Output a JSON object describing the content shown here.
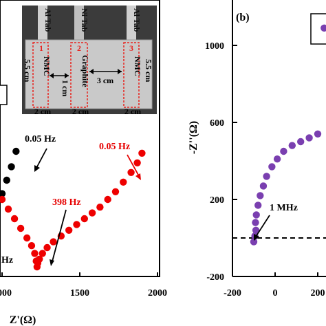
{
  "colors": {
    "black_series": "#000000",
    "red_series": "#ee0000",
    "purple_series": "#7a3fb0",
    "photo_bg": "#3b3b3b",
    "pouch": "#c9c9c9",
    "pouch_label_red": "#e8231e"
  },
  "chart_data": [
    {
      "type": "scatter",
      "panel": "a",
      "xlabel": "Z'(Ω)",
      "ylabel": "",
      "xlim": [
        1000,
        2000
      ],
      "x_ticks": [
        "1000",
        "1500",
        "2000"
      ],
      "series": [
        {
          "color": "#000000",
          "x": [
            1000,
            1030,
            1060,
            1090
          ],
          "y": [
            0.12,
            0.19,
            0.26,
            0.34
          ]
        },
        {
          "color": "#ee0000",
          "x": [
            1000,
            1040,
            1080,
            1120,
            1160,
            1190,
            1210,
            1220,
            1225,
            1230,
            1240,
            1260,
            1290,
            1330,
            1380,
            1430,
            1480,
            1530,
            1580,
            1630,
            1680,
            1730,
            1780,
            1830,
            1870,
            1900
          ],
          "y": [
            0.09,
            0.04,
            -0.01,
            -0.06,
            -0.11,
            -0.15,
            -0.19,
            -0.23,
            -0.26,
            -0.24,
            -0.22,
            -0.19,
            -0.16,
            -0.13,
            -0.1,
            -0.07,
            -0.04,
            -0.01,
            0.02,
            0.05,
            0.09,
            0.13,
            0.18,
            0.23,
            0.28,
            0.33
          ]
        }
      ],
      "annotations": [
        "0.05 Hz",
        "0.05 Hz",
        "398 Hz",
        "Hz"
      ]
    },
    {
      "type": "scatter",
      "panel": "b",
      "title": "(b)",
      "xlabel": "",
      "ylabel": "-Z''(Ω)",
      "xlim": [
        -200,
        300
      ],
      "ylim": [
        -200,
        1200
      ],
      "x_ticks": [
        "-200",
        "0",
        "200"
      ],
      "y_ticks": [
        "-200",
        "200",
        "600",
        "1000"
      ],
      "series": [
        {
          "color": "#7a3fb0",
          "x": [
            -100,
            -95,
            -90,
            -92,
            -88,
            -80,
            -70,
            -55,
            -40,
            -15,
            10,
            40,
            80,
            120,
            160,
            200,
            230
          ],
          "y": [
            -20,
            10,
            40,
            80,
            120,
            170,
            220,
            270,
            320,
            370,
            410,
            450,
            480,
            500,
            520,
            540,
            1090
          ]
        }
      ],
      "reference_line": {
        "y": 0,
        "style": "dashed"
      },
      "annotations": [
        "1 MHz"
      ]
    }
  ],
  "photo": {
    "tabs": [
      "Al Tab",
      "Ni Tab",
      "Al Tab"
    ],
    "electrodes": [
      "NMC",
      "Graphite",
      "NMC"
    ],
    "numbers": [
      "1",
      "2",
      "3"
    ],
    "dim_height_left": "5.5 cm",
    "dim_height_right": "5.5 cm",
    "dim_gap_1": "1 cm",
    "dim_gap_2": "3 cm",
    "dim_width_1": "2 cm",
    "dim_width_2": "2 cm",
    "dim_width_3": "2 cm"
  }
}
